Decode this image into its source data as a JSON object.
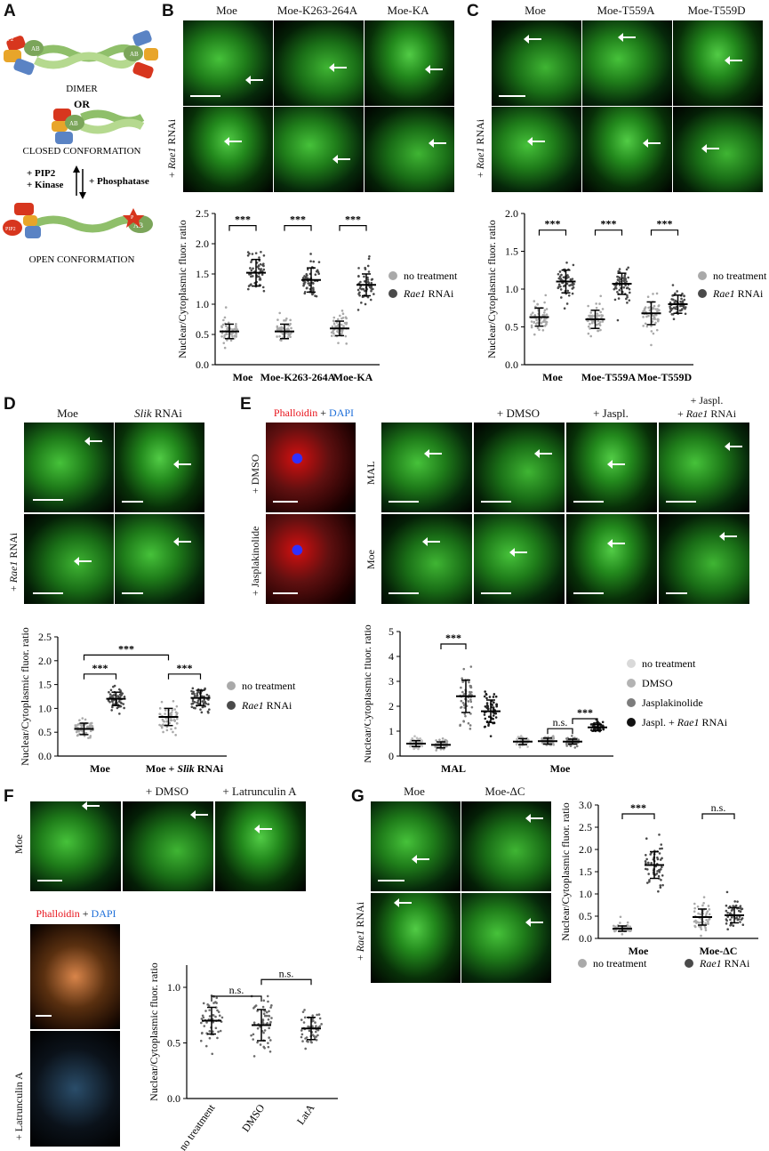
{
  "panel_labels": [
    "A",
    "B",
    "C",
    "D",
    "E",
    "F",
    "G"
  ],
  "panelA": {
    "domains": [
      "F2",
      "F3",
      "F1",
      "AB",
      "P",
      "PIP2"
    ],
    "dimer": "DIMER",
    "or": "OR",
    "closed": "CLOSED CONFORMATION",
    "pip2_kinase": "+ PIP2\n+ Kinase",
    "phosphatase": "+ Phosphatase",
    "open": "OPEN CONFORMATION"
  },
  "panelB": {
    "columns": [
      "Moe",
      "Moe-K263-264A",
      "Moe-KA"
    ],
    "row_label": "+ Rae1 RNAi",
    "row_label_gene": "Rae1",
    "row_label_pre": "+ ",
    "row_label_post": " RNAi"
  },
  "panelC": {
    "columns": [
      "Moe",
      "Moe-T559A",
      "Moe-T559D"
    ],
    "row_label_pre": "+ ",
    "row_label_gene": "Rae1",
    "row_label_post": " RNAi"
  },
  "panelD": {
    "columns_pre": [
      "Moe",
      ""
    ],
    "col2_gene": "Slik",
    "col2_post": " RNAi",
    "row_label_pre": "+ ",
    "row_label_gene": "Rae1",
    "row_label_post": " RNAi"
  },
  "panelE": {
    "stain_title_red": "Phalloidin",
    "stain_title_plus": " + ",
    "stain_title_blue": "DAPI",
    "stain_rows": [
      "+ DMSO",
      "+ Jasplakinolide"
    ],
    "columns": [
      "",
      "+ DMSO",
      "+ Jaspl.",
      "+ Jaspl."
    ],
    "col4_line2_pre": "+ ",
    "col4_line2_gene": "Rae1",
    "col4_line2_post": " RNAi",
    "rows": [
      "MAL",
      "Moe"
    ]
  },
  "panelF": {
    "columns": [
      "",
      "+ DMSO",
      "+ Latrunculin A"
    ],
    "row": "Moe",
    "stain_title_red": "Phalloidin",
    "stain_title_plus": " + ",
    "stain_title_blue": "DAPI",
    "stain_row": "+ Latrunculin A"
  },
  "panelG": {
    "columns": [
      "Moe",
      "Moe-ΔC"
    ],
    "row_label_pre": "+ ",
    "row_label_gene": "Rae1",
    "row_label_post": " RNAi"
  },
  "colors": {
    "red": "#e8141c",
    "blue": "#1e6fd9",
    "light_dot": "#bdbdbd",
    "dark_dot": "#555555"
  },
  "chart_data": [
    {
      "id": "B",
      "type": "scatter",
      "ylabel": "Nuclear/Cytoplasmic fluor. ratio",
      "ylim": [
        0,
        2.5
      ],
      "yticks": [
        "0.0",
        "0.5",
        "1.0",
        "1.5",
        "2.0",
        "2.5"
      ],
      "categories": [
        "Moe",
        "Moe-K263-264A",
        "Moe-KA"
      ],
      "series": [
        {
          "name": "no treatment",
          "means": [
            0.55,
            0.55,
            0.6
          ],
          "sd": [
            0.12,
            0.12,
            0.12
          ]
        },
        {
          "name": "Rae1 RNAi",
          "means": [
            1.52,
            1.4,
            1.32
          ],
          "sd": [
            0.22,
            0.2,
            0.18
          ]
        }
      ],
      "significance": [
        "***",
        "***",
        "***"
      ],
      "legend": [
        "no treatment",
        "Rae1 RNAi"
      ]
    },
    {
      "id": "C",
      "type": "scatter",
      "ylabel": "Nuclear/Cytoplasmic fluor. ratio",
      "ylim": [
        0,
        2.0
      ],
      "yticks": [
        "0.0",
        "0.5",
        "1.0",
        "1.5",
        "2.0"
      ],
      "categories": [
        "Moe",
        "Moe-T559A",
        "Moe-T559D"
      ],
      "series": [
        {
          "name": "no treatment",
          "means": [
            0.63,
            0.6,
            0.68
          ],
          "sd": [
            0.12,
            0.12,
            0.15
          ]
        },
        {
          "name": "Rae1 RNAi",
          "means": [
            1.1,
            1.07,
            0.8
          ],
          "sd": [
            0.15,
            0.14,
            0.12
          ]
        }
      ],
      "significance": [
        "***",
        "***",
        "***"
      ],
      "legend": [
        "no treatment",
        "Rae1 RNAi"
      ]
    },
    {
      "id": "D",
      "type": "scatter",
      "ylabel": "Nuclear/Cytoplasmic fluor. ratio",
      "ylim": [
        0,
        2.5
      ],
      "yticks": [
        "0.0",
        "0.5",
        "1.0",
        "1.5",
        "2.0",
        "2.5"
      ],
      "categories": [
        "Moe",
        "Moe + Slik RNAi"
      ],
      "series": [
        {
          "name": "no treatment",
          "means": [
            0.57,
            0.82
          ],
          "sd": [
            0.12,
            0.18
          ]
        },
        {
          "name": "Rae1 RNAi",
          "means": [
            1.2,
            1.22
          ],
          "sd": [
            0.14,
            0.16
          ]
        }
      ],
      "significance": [
        "***",
        "***"
      ],
      "top_significance": "***",
      "legend": [
        "no treatment",
        "Rae1 RNAi"
      ]
    },
    {
      "id": "E",
      "type": "scatter",
      "ylabel": "Nuclear/Cytoplasmic fluor. ratio",
      "ylim": [
        0,
        5
      ],
      "yticks": [
        "0",
        "1",
        "2",
        "3",
        "4",
        "5"
      ],
      "categories": [
        "MAL",
        "Moe"
      ],
      "series": [
        {
          "name": "no treatment",
          "means": [
            0.5,
            0.58
          ],
          "sd": [
            0.12,
            0.12
          ]
        },
        {
          "name": "DMSO",
          "means": [
            0.45,
            0.6
          ],
          "sd": [
            0.12,
            0.12
          ]
        },
        {
          "name": "Jasplakinolide",
          "means": [
            2.4,
            0.58
          ],
          "sd": [
            0.65,
            0.1
          ]
        },
        {
          "name": "Jaspl. + Rae1 RNAi",
          "means": [
            1.8,
            1.15
          ],
          "sd": [
            0.45,
            0.12
          ]
        }
      ],
      "significance_labels": [
        "***",
        "n.s.",
        "***"
      ],
      "legend": [
        "no treatment",
        "DMSO",
        "Jasplakinolide",
        "Jaspl. + Rae1 RNAi"
      ]
    },
    {
      "id": "F",
      "type": "scatter",
      "ylabel": "Nuclear/Cytoplasmic fluor. ratio",
      "ylim": [
        0,
        1.2
      ],
      "yticks": [
        "0.0",
        "0.5",
        "1.0"
      ],
      "categories": [
        "no treatment",
        "DMSO",
        "LatA"
      ],
      "series": [
        {
          "name": "",
          "means": [
            0.7,
            0.66,
            0.63
          ],
          "sd": [
            0.12,
            0.14,
            0.1
          ]
        }
      ],
      "significance_labels": [
        "n.s.",
        "n.s."
      ]
    },
    {
      "id": "G",
      "type": "scatter",
      "ylabel": "Nuclear/Cytoplasmic fluor. ratio",
      "ylim": [
        0,
        3.0
      ],
      "yticks": [
        "0.0",
        "0.5",
        "1.0",
        "1.5",
        "2.0",
        "2.5",
        "3.0"
      ],
      "categories": [
        "Moe",
        "Moe-ΔC"
      ],
      "series": [
        {
          "name": "no treatment",
          "means": [
            0.22,
            0.48
          ],
          "sd": [
            0.06,
            0.18
          ]
        },
        {
          "name": "Rae1 RNAi",
          "means": [
            1.65,
            0.52
          ],
          "sd": [
            0.3,
            0.17
          ]
        }
      ],
      "significance_labels": [
        "***",
        "n.s."
      ],
      "legend": [
        "no treatment",
        "Rae1 RNAi"
      ]
    }
  ]
}
